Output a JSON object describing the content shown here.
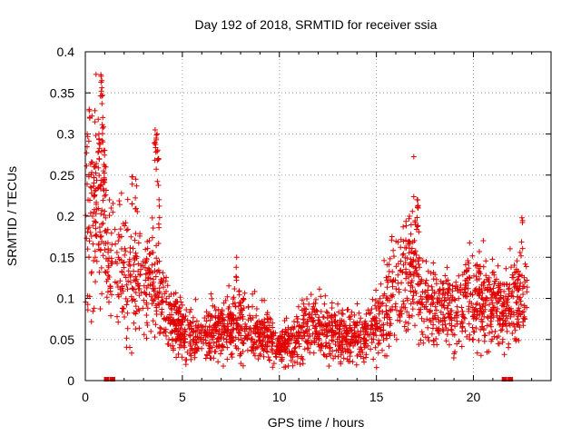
{
  "chart_data": {
    "type": "scatter",
    "title": "Day 192 of 2018, SRMTID for receiver ssia",
    "xlabel": "GPS time / hours",
    "ylabel": "SRMTID / TECUs",
    "xlim": [
      0,
      24
    ],
    "ylim": [
      0,
      0.4
    ],
    "xticks": [
      0,
      5,
      10,
      15,
      20
    ],
    "xtick_labels": [
      "0",
      "5",
      "10",
      "15",
      "20"
    ],
    "yticks": [
      0,
      0.05,
      0.1,
      0.15,
      0.2,
      0.25,
      0.3,
      0.35,
      0.4
    ],
    "ytick_labels": [
      "0",
      "0.05",
      "0.1",
      "0.15",
      "0.2",
      "0.25",
      "0.3",
      "0.35",
      "0.4"
    ],
    "grid": true,
    "marker": "+",
    "color": "#e00000",
    "series": [
      {
        "name": "SRMTID",
        "profile": [
          {
            "x": 0.0,
            "y": 0.155
          },
          {
            "x": 0.3,
            "y": 0.2
          },
          {
            "x": 0.6,
            "y": 0.225
          },
          {
            "x": 0.9,
            "y": 0.215
          },
          {
            "x": 1.2,
            "y": 0.145
          },
          {
            "x": 1.6,
            "y": 0.14
          },
          {
            "x": 2.0,
            "y": 0.13
          },
          {
            "x": 2.5,
            "y": 0.115
          },
          {
            "x": 3.0,
            "y": 0.12
          },
          {
            "x": 3.5,
            "y": 0.12
          },
          {
            "x": 3.9,
            "y": 0.095
          },
          {
            "x": 4.5,
            "y": 0.07
          },
          {
            "x": 5.0,
            "y": 0.06
          },
          {
            "x": 6.0,
            "y": 0.058
          },
          {
            "x": 7.0,
            "y": 0.065
          },
          {
            "x": 8.0,
            "y": 0.07
          },
          {
            "x": 9.0,
            "y": 0.058
          },
          {
            "x": 10.0,
            "y": 0.042
          },
          {
            "x": 10.8,
            "y": 0.05
          },
          {
            "x": 11.5,
            "y": 0.068
          },
          {
            "x": 12.5,
            "y": 0.06
          },
          {
            "x": 13.5,
            "y": 0.055
          },
          {
            "x": 14.5,
            "y": 0.058
          },
          {
            "x": 15.0,
            "y": 0.07
          },
          {
            "x": 15.5,
            "y": 0.09
          },
          {
            "x": 16.0,
            "y": 0.11
          },
          {
            "x": 16.5,
            "y": 0.13
          },
          {
            "x": 17.0,
            "y": 0.15
          },
          {
            "x": 17.3,
            "y": 0.1
          },
          {
            "x": 18.0,
            "y": 0.09
          },
          {
            "x": 19.0,
            "y": 0.085
          },
          {
            "x": 19.8,
            "y": 0.105
          },
          {
            "x": 20.5,
            "y": 0.1
          },
          {
            "x": 21.0,
            "y": 0.09
          },
          {
            "x": 21.5,
            "y": 0.085
          },
          {
            "x": 22.0,
            "y": 0.09
          },
          {
            "x": 22.8,
            "y": 0.11
          }
        ],
        "spikes": [
          {
            "x": 0.1,
            "y": 0.3
          },
          {
            "x": 0.2,
            "y": 0.33
          },
          {
            "x": 0.45,
            "y": 0.26
          },
          {
            "x": 0.7,
            "y": 0.3
          },
          {
            "x": 0.8,
            "y": 0.372
          },
          {
            "x": 0.85,
            "y": 0.365
          },
          {
            "x": 0.9,
            "y": 0.32
          },
          {
            "x": 1.0,
            "y": 0.28
          },
          {
            "x": 2.4,
            "y": 0.248
          },
          {
            "x": 2.6,
            "y": 0.245
          },
          {
            "x": 3.6,
            "y": 0.305
          },
          {
            "x": 3.65,
            "y": 0.295
          },
          {
            "x": 3.7,
            "y": 0.3
          },
          {
            "x": 3.75,
            "y": 0.27
          },
          {
            "x": 3.8,
            "y": 0.22
          },
          {
            "x": 7.8,
            "y": 0.15
          },
          {
            "x": 16.7,
            "y": 0.2
          },
          {
            "x": 17.1,
            "y": 0.22
          },
          {
            "x": 17.15,
            "y": 0.213
          },
          {
            "x": 22.5,
            "y": 0.198
          }
        ],
        "gaps_marked": [
          1.1,
          1.4,
          21.6,
          21.9
        ]
      }
    ]
  }
}
